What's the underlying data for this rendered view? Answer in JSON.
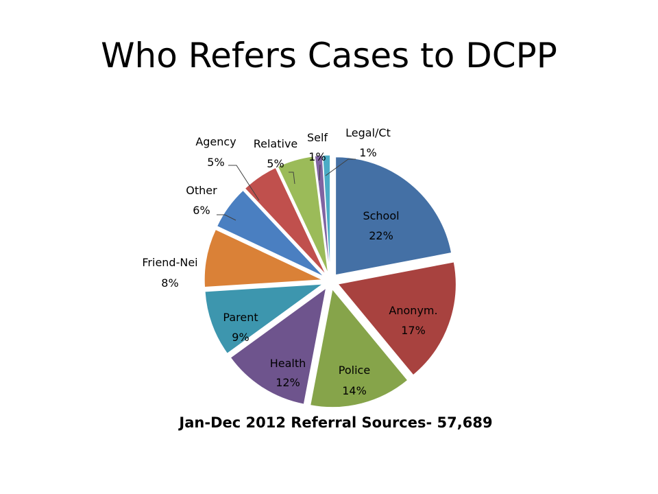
{
  "slide": {
    "title": "Who Refers Cases to DCPP"
  },
  "chart_data": {
    "type": "pie",
    "title": "Jan-Dec 2012 Referral Sources- 57,689",
    "slices": [
      {
        "label": "School",
        "value": 22,
        "value_label": "22%",
        "color": "#4470a5"
      },
      {
        "label": "Anonym.",
        "value": 17,
        "value_label": "17%",
        "color": "#a8423f"
      },
      {
        "label": "Police",
        "value": 14,
        "value_label": "14%",
        "color": "#86a44a"
      },
      {
        "label": "Health",
        "value": 12,
        "value_label": "12%",
        "color": "#6e548d"
      },
      {
        "label": "Parent",
        "value": 9,
        "value_label": "9%",
        "color": "#3d96ae"
      },
      {
        "label": "Friend-Nei",
        "value": 8,
        "value_label": "8%",
        "color": "#da8137"
      },
      {
        "label": "Other",
        "value": 6,
        "value_label": "6%",
        "color": "#4a7fc1"
      },
      {
        "label": "Agency",
        "value": 5,
        "value_label": "5%",
        "color": "#c0504d"
      },
      {
        "label": "Relative",
        "value": 5,
        "value_label": "5%",
        "color": "#9bbb59"
      },
      {
        "label": "Self",
        "value": 1,
        "value_label": "1%",
        "color": "#8064a2"
      },
      {
        "label": "Legal/Ct",
        "value": 1,
        "value_label": "1%",
        "color": "#4bacc6"
      }
    ],
    "start_angle": "12 o'clock, clockwise",
    "exploded": true
  }
}
